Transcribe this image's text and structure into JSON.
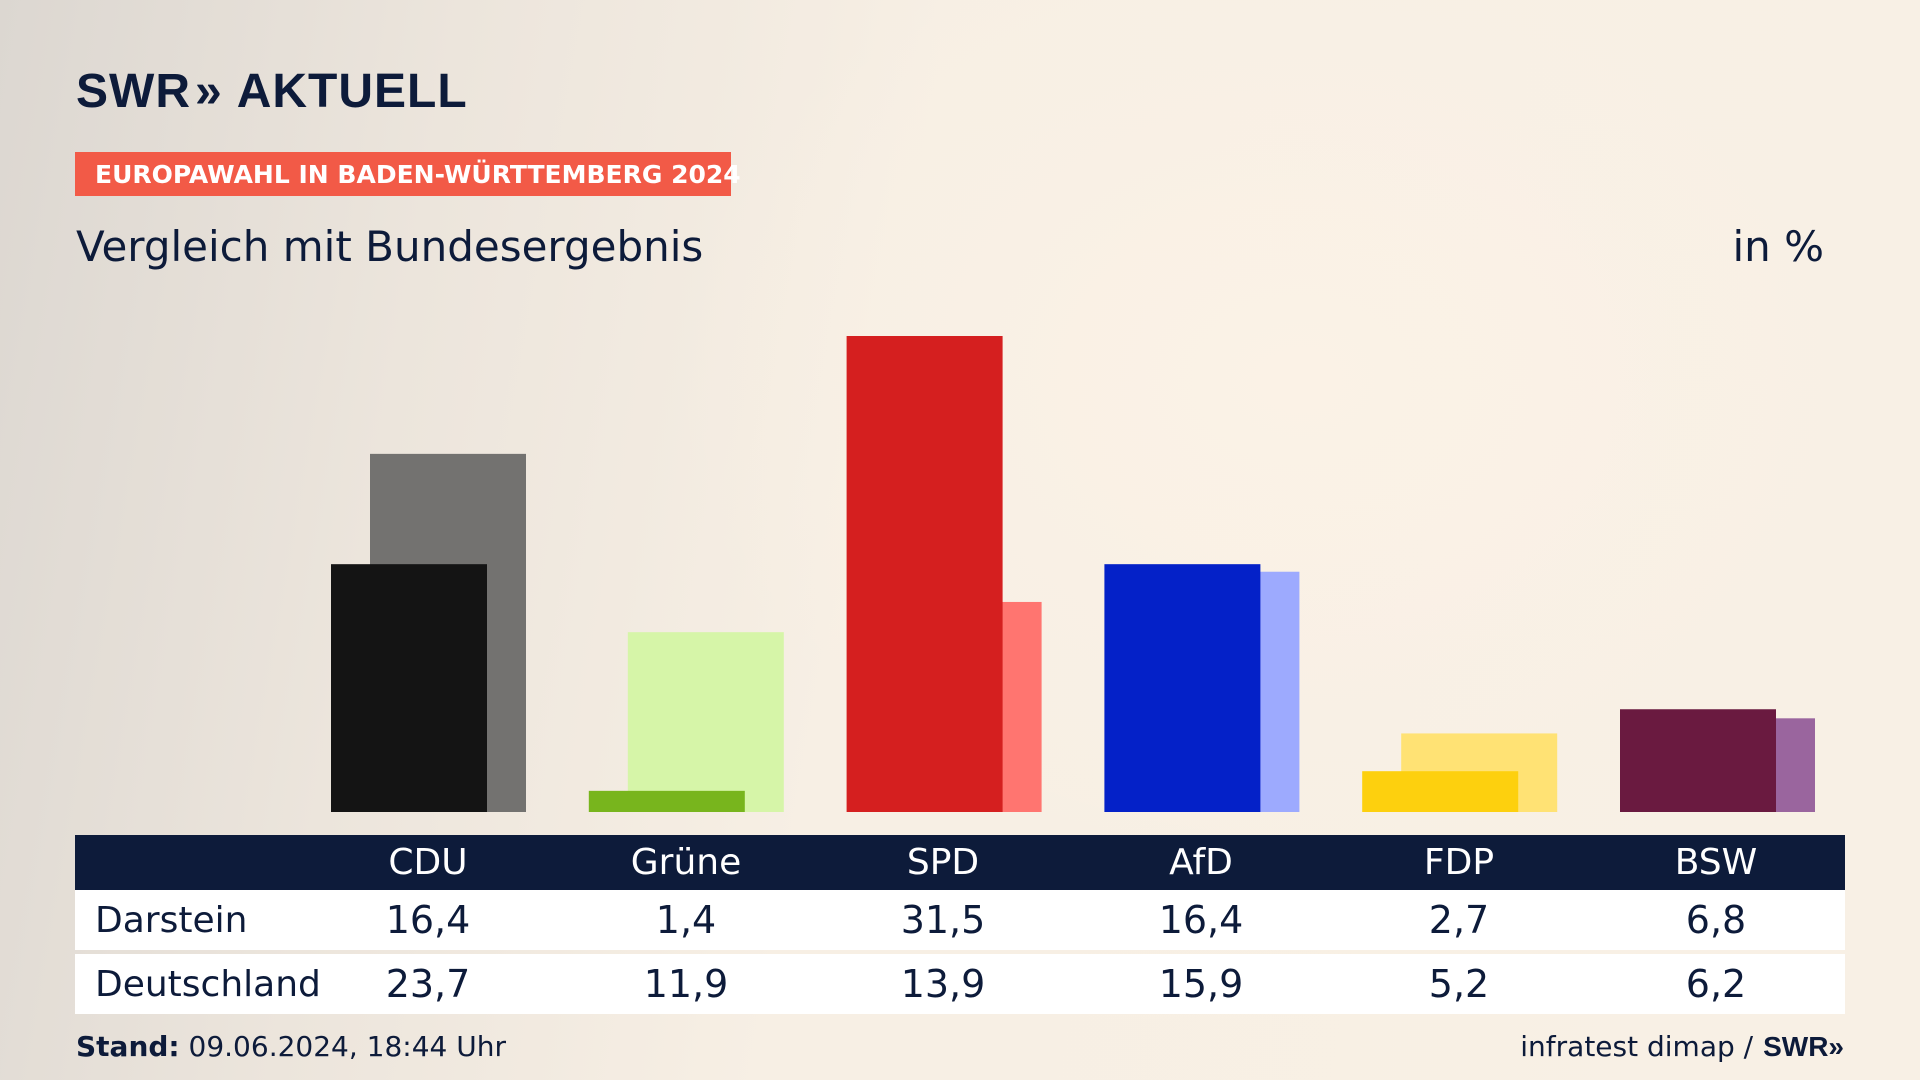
{
  "header": {
    "logo_text": "SWR",
    "logo_chevron": "»",
    "logo_sub": "AKTUELL",
    "tag": "EUROPAWAHL IN BADEN-WÜRTTEMBERG 2024",
    "title": "Vergleich mit Bundesergebnis",
    "unit": "in %"
  },
  "chart_data": {
    "type": "bar",
    "title": "Vergleich mit Bundesergebnis",
    "ylabel": "in %",
    "ylim": [
      0,
      32
    ],
    "categories": [
      "CDU",
      "Grüne",
      "SPD",
      "AfD",
      "FDP",
      "BSW"
    ],
    "series": [
      {
        "name": "Darstein",
        "values": [
          16.4,
          1.4,
          31.5,
          16.4,
          2.7,
          6.8
        ],
        "colors": [
          "#141414",
          "#78b51d",
          "#d51f1f",
          "#0421c8",
          "#fdd00e",
          "#6a1a40"
        ]
      },
      {
        "name": "Deutschland",
        "values": [
          23.7,
          11.9,
          13.9,
          15.9,
          5.2,
          6.2
        ],
        "colors": [
          "#737270",
          "#d6f5a8",
          "#ff7570",
          "#9daafe",
          "#ffe274",
          "#9a659e"
        ]
      }
    ]
  },
  "table": {
    "rows": [
      {
        "label": "Darstein",
        "values": [
          "16,4",
          "1,4",
          "31,5",
          "16,4",
          "2,7",
          "6,8"
        ]
      },
      {
        "label": "Deutschland",
        "values": [
          "23,7",
          "11,9",
          "13,9",
          "15,9",
          "5,2",
          "6,2"
        ]
      }
    ]
  },
  "footer": {
    "stand_label": "Stand:",
    "stand_value": "09.06.2024, 18:44 Uhr",
    "source": "infratest dimap /",
    "source_logo": "SWR»"
  }
}
